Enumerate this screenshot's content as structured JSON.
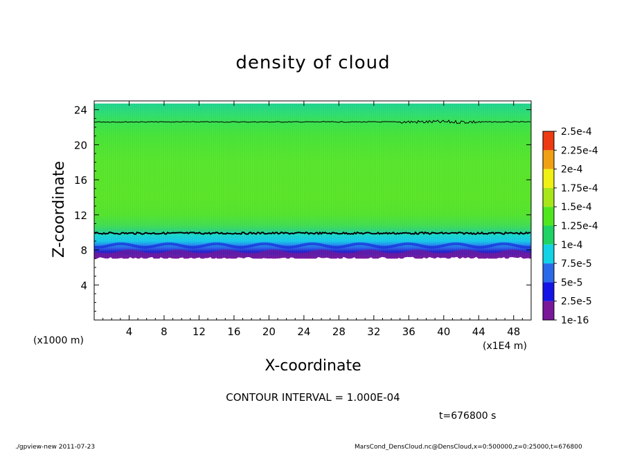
{
  "chart_data": {
    "type": "heatmap",
    "title": "density of cloud",
    "xlabel": "X-coordinate",
    "ylabel": "Z-coordinate",
    "x_unit": "(x1E4 m)",
    "y_unit": "(x1000 m)",
    "xlim": [
      0,
      50
    ],
    "ylim": [
      0,
      25
    ],
    "x_ticks": [
      4,
      8,
      12,
      16,
      20,
      24,
      28,
      32,
      36,
      40,
      44,
      48
    ],
    "y_ticks": [
      4,
      8,
      12,
      16,
      20,
      24
    ],
    "colorbar": {
      "labels": [
        "1e-16",
        "2.5e-5",
        "5e-5",
        "7.5e-5",
        "1e-4",
        "1.25e-4",
        "1.5e-4",
        "1.75e-4",
        "2e-4",
        "2.25e-4",
        "2.5e-4"
      ],
      "colors": [
        "#7a189a",
        "#1414e6",
        "#2a6ae8",
        "#12d2e6",
        "#1ed264",
        "#50e61e",
        "#a8e61a",
        "#f0f014",
        "#f0a014",
        "#ee3a12",
        "#f6a0a0"
      ]
    },
    "profile": [
      {
        "z": 24.7,
        "color": "#1ed28c"
      },
      {
        "z": 23.5,
        "color": "#2cdc70"
      },
      {
        "z": 22.5,
        "color": "#38e04c"
      },
      {
        "z": 21.0,
        "color": "#46e236"
      },
      {
        "z": 18.0,
        "color": "#56e42a"
      },
      {
        "z": 14.0,
        "color": "#58e426"
      },
      {
        "z": 12.0,
        "color": "#52e22c"
      },
      {
        "z": 10.8,
        "color": "#40dc50"
      },
      {
        "z": 10.2,
        "color": "#2ed278"
      },
      {
        "z": 9.8,
        "color": "#18d6c8"
      },
      {
        "z": 9.0,
        "color": "#16c8e8"
      },
      {
        "z": 8.6,
        "color": "#2090ec"
      },
      {
        "z": 8.2,
        "color": "#2a5ee6"
      },
      {
        "z": 7.8,
        "color": "#2020cc"
      },
      {
        "z": 7.5,
        "color": "#5a1aa8"
      },
      {
        "z": 7.0,
        "color": "#7a189a"
      }
    ],
    "contour_levels_z": [
      22.6,
      9.9
    ],
    "cloud_bottom_z": 7.0
  },
  "contour_interval": "CONTOUR INTERVAL = 1.000E-04",
  "time_label": "t=676800 s",
  "footer_left": "./gpview-new   2011-07-23",
  "footer_right": "MarsCond_DensCloud.nc@DensCloud,x=0:500000,z=0:25000,t=676800"
}
